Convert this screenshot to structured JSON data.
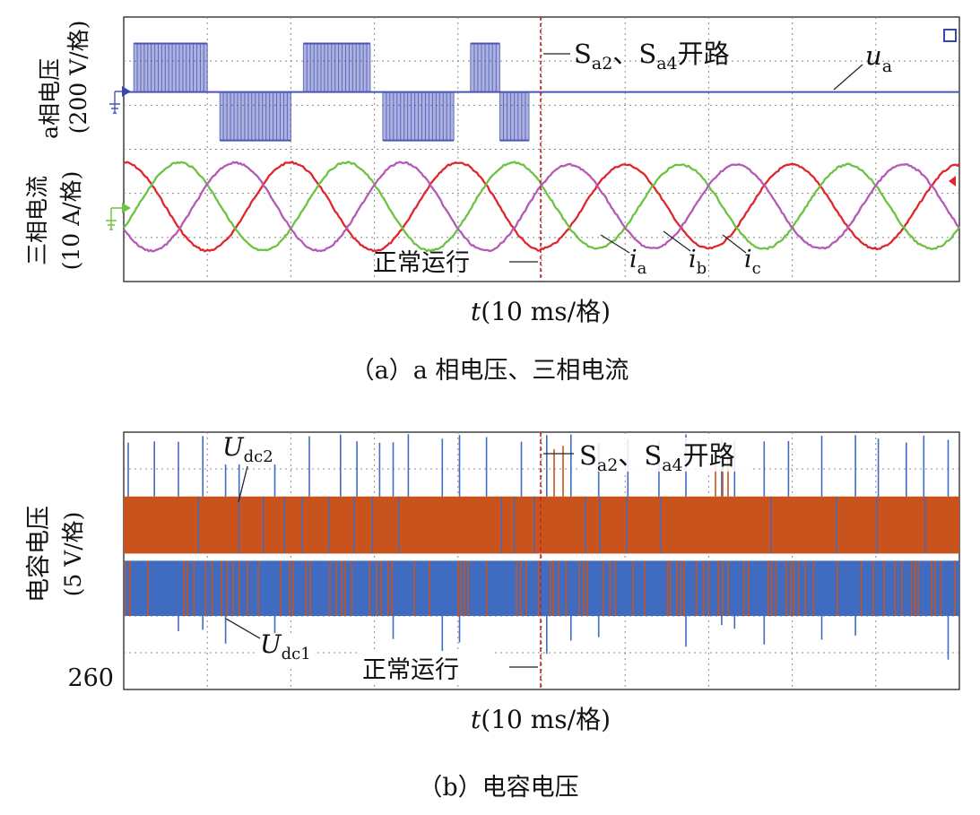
{
  "chart_data": [
    {
      "type": "line",
      "panel_caption": "（a）a 相电压、三相电流",
      "time_axis": {
        "label_var": "t",
        "label_unit": "(10 ms/格)",
        "divisions": 10
      },
      "ylabel_voltage": [
        "a相电压",
        "(200 V/格)"
      ],
      "ylabel_current": [
        "三相电流",
        "(10 A/格)"
      ],
      "fault_time_div": 5.0,
      "fault_annotation": {
        "prefix": "S",
        "sub1": "a2",
        "sep": "、",
        "sub2": "a4",
        "suffix": "开路"
      },
      "normal_annotation": "正常运行",
      "voltage_series": {
        "name_var": "u",
        "name_sub": "a",
        "color": "#4a55b8",
        "grid_divisions": 3,
        "pulse_segments": [
          {
            "start": 0.12,
            "end": 1.0,
            "level": 1.1
          },
          {
            "start": 1.15,
            "end": 2.0,
            "level": -1.1
          },
          {
            "start": 2.15,
            "end": 2.95,
            "level": 1.1
          },
          {
            "start": 3.1,
            "end": 3.95,
            "level": -1.1
          },
          {
            "start": 4.15,
            "end": 4.5,
            "level": 1.1
          },
          {
            "start": 4.5,
            "end": 4.85,
            "level": -1.1
          }
        ]
      },
      "current_series": [
        {
          "name_var": "i",
          "name_sub": "a",
          "color": "#e0262b",
          "phase_deg": 0
        },
        {
          "name_var": "i",
          "name_sub": "b",
          "color": "#6cc243",
          "phase_deg": -120
        },
        {
          "name_var": "i",
          "name_sub": "c",
          "color": "#b45ab6",
          "phase_deg": 120
        }
      ],
      "current_period_div": 2.0,
      "current_amp_before_div": 1.0,
      "current_amp_after_div": 0.95
    },
    {
      "type": "line",
      "panel_caption": "（b）电容电压",
      "time_axis": {
        "label_var": "t",
        "label_unit": "(10 ms/格)",
        "divisions": 10
      },
      "ylabel": [
        "电容电压",
        "(5 V/格)"
      ],
      "y_tick_label": "260",
      "fault_time_div": 5.0,
      "fault_annotation": {
        "prefix": "S",
        "sub1": "a2",
        "sep": "、",
        "sub2": "a4",
        "suffix": "开路"
      },
      "normal_annotation": "正常运行",
      "series": [
        {
          "name_var": "U",
          "name_sub": "dc2",
          "color": "#c8531c",
          "band_min": 2.0,
          "band_max": 3.0
        },
        {
          "name_var": "U",
          "name_sub": "dc1",
          "color": "#3f6cc0",
          "band_min": 1.0,
          "band_max": 2.0
        }
      ]
    }
  ]
}
